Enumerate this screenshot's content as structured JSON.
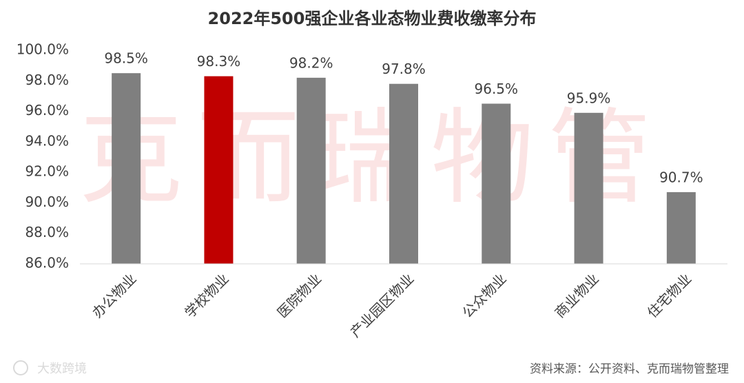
{
  "chart_data": {
    "type": "bar",
    "title": "2022年500强企业各业态物业费收缴率分布",
    "categories": [
      "办公物业",
      "学校物业",
      "医院物业",
      "产业园区物业",
      "公众物业",
      "商业物业",
      "住宅物业"
    ],
    "values": [
      98.5,
      98.3,
      98.2,
      97.8,
      96.5,
      95.9,
      90.7
    ],
    "value_labels": [
      "98.5%",
      "98.3%",
      "98.2%",
      "97.8%",
      "96.5%",
      "95.9%",
      "90.7%"
    ],
    "colors": [
      "#7f7f7f",
      "#c00000",
      "#7f7f7f",
      "#7f7f7f",
      "#7f7f7f",
      "#7f7f7f",
      "#7f7f7f"
    ],
    "ylim": [
      86,
      100
    ],
    "yticks": [
      {
        "value": 86,
        "label": "86.0%"
      },
      {
        "value": 88,
        "label": "88.0%"
      },
      {
        "value": 90,
        "label": "90.0%"
      },
      {
        "value": 92,
        "label": "92.0%"
      },
      {
        "value": 94,
        "label": "94.0%"
      },
      {
        "value": 96,
        "label": "96.0%"
      },
      {
        "value": 98,
        "label": "98.0%"
      },
      {
        "value": 100,
        "label": "100.0%"
      }
    ],
    "grid": false,
    "watermark": "克而瑞物管",
    "source": "资料来源：公开资料、克而瑞物管整理",
    "logo": "大数跨境"
  }
}
